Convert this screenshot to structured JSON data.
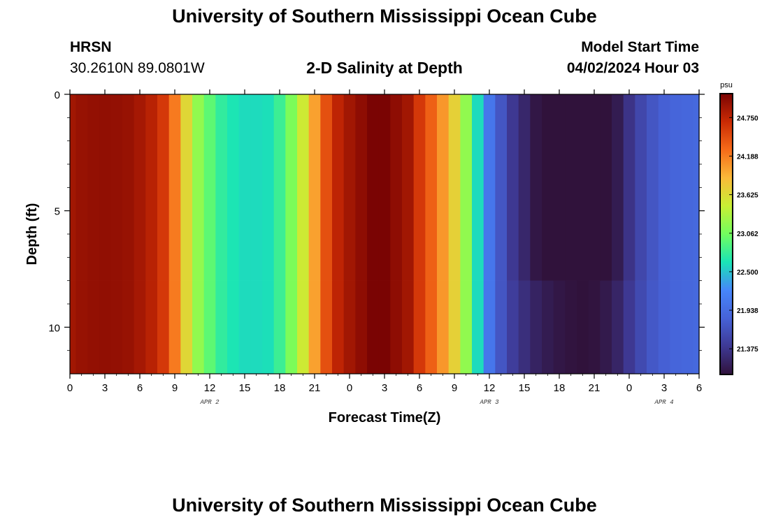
{
  "header": {
    "main_title": "University of Southern Mississippi Ocean Cube",
    "station_name": "HRSN",
    "station_coords": "30.2610N  89.0801W",
    "subtitle": "2-D Salinity at Depth",
    "model_start_label": "Model Start Time",
    "model_start_value": "04/02/2024 Hour 03"
  },
  "footer": {
    "title": "University of Southern Mississippi Ocean Cube"
  },
  "chart_data": {
    "type": "heatmap",
    "title": "2-D Salinity at Depth",
    "xlabel": "Forecast Time(Z)",
    "ylabel": "Depth (ft)",
    "x_unit": "forecast hours from 04/02/2024 00Z",
    "xlim": [
      0,
      54
    ],
    "ylim": [
      0,
      12
    ],
    "x_tick_labels": [
      "0",
      "3",
      "6",
      "9",
      "12",
      "15",
      "18",
      "21",
      "0",
      "3",
      "6",
      "9",
      "12",
      "15",
      "18",
      "21",
      "0",
      "3",
      "6"
    ],
    "x_tick_hours": [
      0,
      3,
      6,
      9,
      12,
      15,
      18,
      21,
      24,
      27,
      30,
      33,
      36,
      39,
      42,
      45,
      48,
      51,
      54
    ],
    "date_labels": [
      {
        "text": "APR 2",
        "hour": 12
      },
      {
        "text": "APR 3",
        "hour": 36
      },
      {
        "text": "APR 4",
        "hour": 51
      }
    ],
    "y_tick_labels": [
      "0",
      "5",
      "10"
    ],
    "y_tick_values": [
      0,
      5,
      10
    ],
    "colorbar": {
      "unit": "psu",
      "min": 21.0,
      "max": 25.1,
      "tick_labels": [
        "24.750",
        "24.188",
        "23.625",
        "23.062",
        "22.500",
        "21.938",
        "21.375"
      ],
      "tick_values": [
        24.75,
        24.188,
        23.625,
        23.062,
        22.5,
        21.938,
        21.375
      ],
      "colormap": [
        "#30123b",
        "#3e3994",
        "#4662d7",
        "#4686fb",
        "#1ae4b6",
        "#72fe5e",
        "#c8ef34",
        "#faba39",
        "#f66b19",
        "#ca2a04",
        "#7a0403"
      ]
    },
    "series": [
      {
        "depth_ft": "0-8",
        "hours": [
          0,
          1,
          2,
          3,
          4,
          5,
          6,
          7,
          8,
          9,
          10,
          11,
          12,
          13,
          14,
          15,
          16,
          17,
          18,
          19,
          20,
          21,
          22,
          23,
          24,
          25,
          26,
          27,
          28,
          29,
          30,
          31,
          32,
          33,
          34,
          35,
          36,
          37,
          38,
          39,
          40,
          41,
          42,
          43,
          44,
          45,
          46,
          47,
          48,
          49,
          50,
          51,
          52,
          53,
          54
        ],
        "values": [
          24.9,
          24.95,
          24.97,
          24.98,
          24.97,
          24.95,
          24.88,
          24.78,
          24.6,
          24.2,
          23.65,
          23.2,
          22.95,
          22.75,
          22.65,
          22.6,
          22.6,
          22.62,
          22.8,
          23.1,
          23.5,
          24.0,
          24.45,
          24.75,
          24.9,
          25.0,
          25.2,
          25.3,
          25.0,
          24.9,
          24.6,
          24.35,
          24.05,
          23.7,
          23.2,
          22.6,
          22.05,
          21.7,
          21.4,
          21.22,
          21.05,
          20.96,
          20.92,
          20.9,
          20.9,
          20.93,
          20.98,
          21.1,
          21.35,
          21.55,
          21.7,
          21.8,
          21.85,
          21.88,
          21.9
        ]
      },
      {
        "depth_ft": "8-12",
        "hours": [
          0,
          1,
          2,
          3,
          4,
          5,
          6,
          7,
          8,
          9,
          10,
          11,
          12,
          13,
          14,
          15,
          16,
          17,
          18,
          19,
          20,
          21,
          22,
          23,
          24,
          25,
          26,
          27,
          28,
          29,
          30,
          31,
          32,
          33,
          34,
          35,
          36,
          37,
          38,
          39,
          40,
          41,
          42,
          43,
          44,
          45,
          46,
          47,
          48,
          49,
          50,
          51,
          52,
          53,
          54
        ],
        "values": [
          24.9,
          24.95,
          24.97,
          24.98,
          24.97,
          24.95,
          24.88,
          24.78,
          24.6,
          24.2,
          23.65,
          23.2,
          22.95,
          22.75,
          22.65,
          22.6,
          22.6,
          22.62,
          22.8,
          23.1,
          23.5,
          24.0,
          24.45,
          24.75,
          24.9,
          25.0,
          25.2,
          25.3,
          25.0,
          24.9,
          24.6,
          24.35,
          24.05,
          23.7,
          23.2,
          22.6,
          22.05,
          21.7,
          21.45,
          21.3,
          21.18,
          21.1,
          21.05,
          21.02,
          21.0,
          21.02,
          21.08,
          21.2,
          21.4,
          21.58,
          21.72,
          21.8,
          21.85,
          21.88,
          21.9
        ]
      }
    ]
  }
}
